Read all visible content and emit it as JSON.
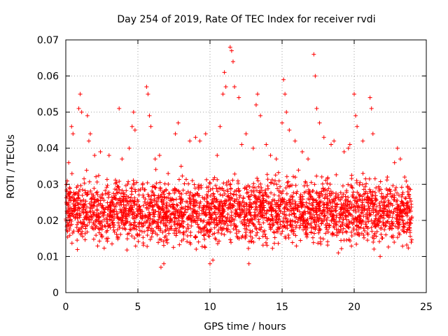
{
  "chart_data": {
    "type": "scatter",
    "title": "Day 254 of 2019, Rate Of TEC Index for receiver rvdi",
    "xlabel": "GPS time / hours",
    "ylabel": "ROTI / TECUs",
    "xlim": [
      0,
      25
    ],
    "ylim": [
      0,
      0.07
    ],
    "xticks": [
      0,
      5,
      10,
      15,
      20,
      25
    ],
    "yticks": [
      0,
      0.01,
      0.02,
      0.03,
      0.04,
      0.05,
      0.06,
      0.07
    ],
    "xtick_labels": [
      "0",
      "5",
      "10",
      "15",
      "20",
      "25"
    ],
    "ytick_labels": [
      "0",
      "0.01",
      "0.02",
      "0.03",
      "0.04",
      "0.05",
      "0.06",
      "0.07"
    ],
    "grid": true,
    "marker": "+",
    "series_color": "#ff0000",
    "x_range_hours": [
      0,
      24
    ],
    "typical_band": [
      0.01,
      0.035
    ],
    "series": [
      {
        "name": "ROTI",
        "points": [
          [
            0.2,
            0.036
          ],
          [
            0.4,
            0.046
          ],
          [
            0.5,
            0.044
          ],
          [
            0.9,
            0.051
          ],
          [
            1.0,
            0.055
          ],
          [
            1.1,
            0.05
          ],
          [
            1.5,
            0.049
          ],
          [
            1.6,
            0.042
          ],
          [
            1.7,
            0.044
          ],
          [
            2.0,
            0.038
          ],
          [
            2.4,
            0.039
          ],
          [
            3.0,
            0.038
          ],
          [
            3.7,
            0.051
          ],
          [
            3.9,
            0.037
          ],
          [
            4.4,
            0.04
          ],
          [
            4.6,
            0.046
          ],
          [
            4.7,
            0.05
          ],
          [
            4.8,
            0.045
          ],
          [
            5.6,
            0.057
          ],
          [
            5.7,
            0.055
          ],
          [
            5.8,
            0.049
          ],
          [
            5.9,
            0.046
          ],
          [
            6.2,
            0.037
          ],
          [
            6.5,
            0.038
          ],
          [
            6.6,
            0.007
          ],
          [
            6.8,
            0.008
          ],
          [
            7.6,
            0.044
          ],
          [
            7.8,
            0.047
          ],
          [
            8.0,
            0.035
          ],
          [
            8.6,
            0.042
          ],
          [
            9.0,
            0.043
          ],
          [
            9.3,
            0.042
          ],
          [
            9.7,
            0.044
          ],
          [
            10.0,
            0.008
          ],
          [
            10.2,
            0.009
          ],
          [
            10.5,
            0.038
          ],
          [
            10.7,
            0.046
          ],
          [
            10.9,
            0.055
          ],
          [
            11.0,
            0.061
          ],
          [
            11.1,
            0.057
          ],
          [
            11.4,
            0.068
          ],
          [
            11.5,
            0.067
          ],
          [
            11.6,
            0.064
          ],
          [
            11.7,
            0.057
          ],
          [
            12.0,
            0.054
          ],
          [
            12.2,
            0.041
          ],
          [
            12.5,
            0.044
          ],
          [
            12.7,
            0.008
          ],
          [
            13.0,
            0.04
          ],
          [
            13.2,
            0.052
          ],
          [
            13.3,
            0.055
          ],
          [
            13.5,
            0.049
          ],
          [
            13.9,
            0.041
          ],
          [
            14.2,
            0.038
          ],
          [
            14.6,
            0.037
          ],
          [
            15.0,
            0.047
          ],
          [
            15.1,
            0.059
          ],
          [
            15.2,
            0.055
          ],
          [
            15.3,
            0.05
          ],
          [
            15.5,
            0.045
          ],
          [
            15.9,
            0.042
          ],
          [
            16.4,
            0.039
          ],
          [
            16.8,
            0.037
          ],
          [
            17.2,
            0.066
          ],
          [
            17.3,
            0.06
          ],
          [
            17.4,
            0.051
          ],
          [
            17.6,
            0.047
          ],
          [
            17.9,
            0.043
          ],
          [
            18.4,
            0.041
          ],
          [
            18.6,
            0.042
          ],
          [
            18.9,
            0.011
          ],
          [
            19.3,
            0.039
          ],
          [
            19.6,
            0.04
          ],
          [
            19.7,
            0.041
          ],
          [
            20.0,
            0.055
          ],
          [
            20.1,
            0.049
          ],
          [
            20.2,
            0.046
          ],
          [
            20.6,
            0.042
          ],
          [
            21.1,
            0.054
          ],
          [
            21.2,
            0.051
          ],
          [
            21.3,
            0.044
          ],
          [
            21.8,
            0.01
          ],
          [
            22.3,
            0.032
          ],
          [
            22.8,
            0.036
          ],
          [
            23.0,
            0.04
          ],
          [
            23.2,
            0.037
          ],
          [
            23.5,
            0.032
          ],
          [
            23.8,
            0.027
          ]
        ]
      }
    ]
  }
}
